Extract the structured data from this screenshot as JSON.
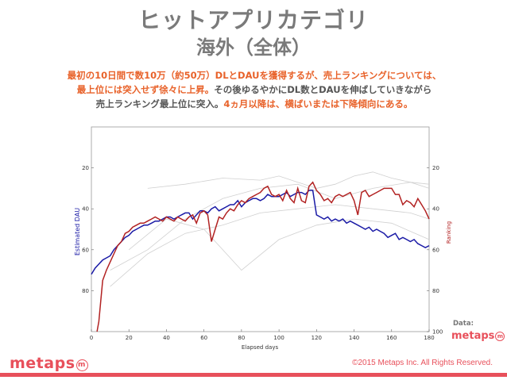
{
  "header": {
    "title_line1": "ヒットアプリカテゴリ",
    "title_line2": "海外（全体）"
  },
  "description": {
    "line1_a": "最初の10日間で数10万（約50万）DLとDAUを獲得するが、売上ランキングについては、",
    "line2_a": "最上位には突入せず徐々に上昇。",
    "line2_b": "その後ゆるやかにDL数とDAUを伸ばしていきながら",
    "line3_a": "売上ランキング最上位に突入。",
    "line3_b": "4ヵ月以降は、横ばいまたは下降傾向にある。"
  },
  "footer": {
    "logo": "metaps",
    "logo_mark": "m",
    "copyright": "©2015 Metaps Inc. All Rights Reserved.",
    "data_label": "Data:",
    "data_logo": "metaps"
  },
  "colors": {
    "dau_series": "#1a1aa6",
    "ranking_series": "#b22222",
    "background_series": "#d0d0d0",
    "accent": "#e8505b",
    "highlight_text": "#e8622a"
  },
  "chart_data": {
    "type": "line",
    "xlabel": "Elapsed days",
    "ylabel_left": "Estimated DAU",
    "ylabel_right": "Ranking",
    "xlim": [
      0,
      180
    ],
    "x_ticks": [
      "0",
      "20",
      "40",
      "60",
      "80",
      "100",
      "120",
      "140",
      "160",
      "180"
    ],
    "left_ticks": [
      "20",
      "40",
      "60",
      "80"
    ],
    "right_ticks": [
      "20",
      "40",
      "60",
      "80",
      "100"
    ],
    "right_ylim_inverted": [
      100,
      0
    ],
    "grid": false,
    "series": [
      {
        "role": "dau",
        "axis": "left",
        "x": [
          0,
          2,
          4,
          6,
          8,
          10,
          12,
          14,
          16,
          18,
          20,
          22,
          24,
          26,
          28,
          30,
          32,
          34,
          36,
          38,
          40,
          42,
          44,
          46,
          48,
          50,
          52,
          54,
          56,
          58,
          60,
          62,
          64,
          66,
          68,
          70,
          72,
          74,
          76,
          78,
          80,
          82,
          84,
          86,
          88,
          90,
          92,
          94,
          96,
          98,
          100,
          102,
          104,
          106,
          108,
          110,
          112,
          114,
          116,
          118,
          120,
          122,
          124,
          126,
          128,
          130,
          132,
          134,
          136,
          138,
          140,
          142,
          144,
          146,
          148,
          150,
          152,
          154,
          156,
          158,
          160,
          162,
          164,
          166,
          168,
          170,
          172,
          174,
          176,
          178,
          180
        ],
        "y": [
          72,
          69,
          67,
          65,
          64,
          63,
          60,
          58,
          56,
          54,
          53,
          51,
          50,
          49,
          48,
          48,
          47,
          46,
          46,
          45,
          44,
          44,
          45,
          44,
          43,
          42,
          42,
          45,
          43,
          41,
          41,
          42,
          40,
          39,
          41,
          40,
          39,
          38,
          38,
          36,
          39,
          37,
          36,
          35,
          35,
          36,
          35,
          33,
          34,
          34,
          34,
          33,
          32,
          34,
          33,
          32,
          32,
          33,
          31,
          31,
          43,
          44,
          45,
          44,
          46,
          45,
          46,
          45,
          47,
          46,
          47,
          48,
          49,
          50,
          49,
          51,
          50,
          51,
          52,
          54,
          53,
          52,
          55,
          54,
          55,
          56,
          55,
          57,
          58,
          59,
          58
        ]
      },
      {
        "role": "ranking",
        "axis": "right",
        "x": [
          3,
          4,
          5,
          6,
          8,
          10,
          12,
          14,
          16,
          18,
          20,
          22,
          24,
          26,
          28,
          30,
          32,
          34,
          36,
          38,
          40,
          42,
          44,
          46,
          48,
          50,
          52,
          54,
          56,
          58,
          60,
          62,
          64,
          66,
          68,
          70,
          72,
          74,
          76,
          78,
          80,
          82,
          84,
          86,
          88,
          90,
          92,
          94,
          96,
          98,
          100,
          102,
          104,
          106,
          108,
          110,
          112,
          114,
          116,
          118,
          120,
          122,
          124,
          126,
          128,
          130,
          132,
          134,
          136,
          138,
          140,
          142,
          144,
          146,
          148,
          150,
          152,
          154,
          156,
          158,
          160,
          162,
          164,
          166,
          168,
          170,
          172,
          174,
          176,
          178,
          180
        ],
        "y": [
          100,
          95,
          85,
          75,
          70,
          66,
          62,
          58,
          56,
          52,
          51,
          49,
          48,
          47,
          47,
          46,
          45,
          44,
          45,
          46,
          44,
          45,
          46,
          44,
          45,
          46,
          44,
          43,
          47,
          42,
          41,
          43,
          56,
          50,
          44,
          45,
          42,
          40,
          41,
          38,
          36,
          37,
          35,
          34,
          33,
          32,
          30,
          29,
          33,
          34,
          33,
          36,
          31,
          35,
          37,
          30,
          36,
          37,
          29,
          27,
          31,
          33,
          36,
          35,
          37,
          34,
          33,
          34,
          33,
          32,
          36,
          43,
          32,
          31,
          34,
          33,
          32,
          31,
          30,
          30,
          30,
          33,
          33,
          38,
          36,
          37,
          39,
          35,
          38,
          41,
          45
        ]
      },
      {
        "role": "other",
        "axis": "left",
        "x": [
          10,
          30,
          50,
          70,
          90,
          110,
          130,
          150,
          170,
          180
        ],
        "y": [
          70,
          60,
          45,
          35,
          30,
          28,
          35,
          30,
          27,
          30
        ]
      },
      {
        "role": "other",
        "axis": "left",
        "x": [
          10,
          30,
          50,
          70,
          90,
          110,
          130,
          150,
          170,
          180
        ],
        "y": [
          78,
          62,
          52,
          48,
          42,
          40,
          38,
          40,
          42,
          45
        ]
      },
      {
        "role": "other",
        "axis": "left",
        "x": [
          20,
          40,
          60,
          80,
          100,
          120,
          140,
          160,
          180
        ],
        "y": [
          60,
          45,
          50,
          70,
          55,
          48,
          45,
          47,
          55
        ]
      },
      {
        "role": "other",
        "axis": "left",
        "x": [
          30,
          50,
          70,
          90,
          100,
          110,
          120,
          130,
          140,
          150,
          160,
          170,
          180
        ],
        "y": [
          30,
          28,
          25,
          26,
          24,
          27,
          30,
          28,
          24,
          22,
          25,
          27,
          28
        ]
      }
    ]
  }
}
